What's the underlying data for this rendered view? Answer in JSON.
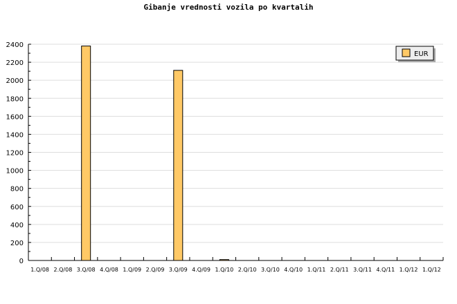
{
  "chart_data": {
    "type": "bar",
    "title": "Gibanje vrednosti vozila po kvartalih",
    "categories": [
      "1.Q/08",
      "2.Q/08",
      "3.Q/08",
      "4.Q/08",
      "1.Q/09",
      "2.Q/09",
      "3.Q/09",
      "4.Q/09",
      "1.Q/10",
      "2.Q/10",
      "3.Q/10",
      "4.Q/10",
      "1.Q/11",
      "2.Q/11",
      "3.Q/11",
      "4.Q/11",
      "1.Q/12",
      "1.Q/12"
    ],
    "series": [
      {
        "name": "EUR",
        "color": "#ffc966",
        "values": [
          0,
          0,
          2380,
          0,
          0,
          0,
          2110,
          0,
          10,
          0,
          0,
          0,
          0,
          0,
          0,
          0,
          0,
          0
        ]
      }
    ],
    "ylim": [
      0,
      2400
    ],
    "yticks": [
      0,
      200,
      400,
      600,
      800,
      1000,
      1200,
      1400,
      1600,
      1800,
      2000,
      2200,
      2400
    ],
    "grid": true,
    "legend": "top-right"
  }
}
